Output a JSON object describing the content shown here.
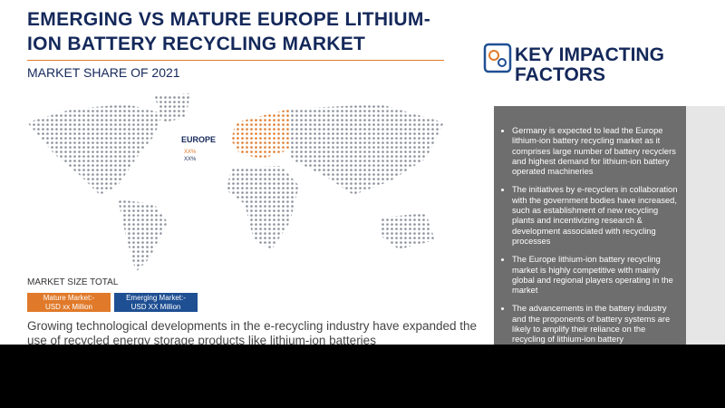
{
  "header": {
    "title": "EMERGING VS MATURE EUROPE LITHIUM-ION BATTERY RECYCLING MARKET",
    "subtitle": "MARKET SHARE OF 2021"
  },
  "map": {
    "region_label": "EUROPE",
    "share_1": "XX%",
    "share_2": "XX%"
  },
  "market_size": {
    "title": "MARKET SIZE TOTAL",
    "boxes": [
      {
        "label": "Mature Market:-",
        "value": "USD xx Million"
      },
      {
        "label": "Emerging Market:-",
        "value": "USD XX Million"
      }
    ]
  },
  "description": "Growing technological developments in the e-recycling industry have expanded the use of recycled energy storage products like lithium-ion batteries",
  "key_factors": {
    "title": "KEY IMPACTING FACTORS",
    "items": [
      "Germany is expected to lead the Europe lithium-ion battery recycling market as it comprises large number of battery recyclers and highest demand for lithium-ion battery operated machineries",
      "The initiatives by e-recyclers in collaboration with the government bodies have increased, such as establishment of new recycling plants and incentivizing research & development associated with recycling processes",
      "The Europe lithium-ion battery recycling market is highly competitive with mainly global and regional players operating in the market",
      "The advancements in the battery industry and the proponents of battery systems are likely to amplify their reliance on the recycling of lithium-ion battery"
    ]
  }
}
